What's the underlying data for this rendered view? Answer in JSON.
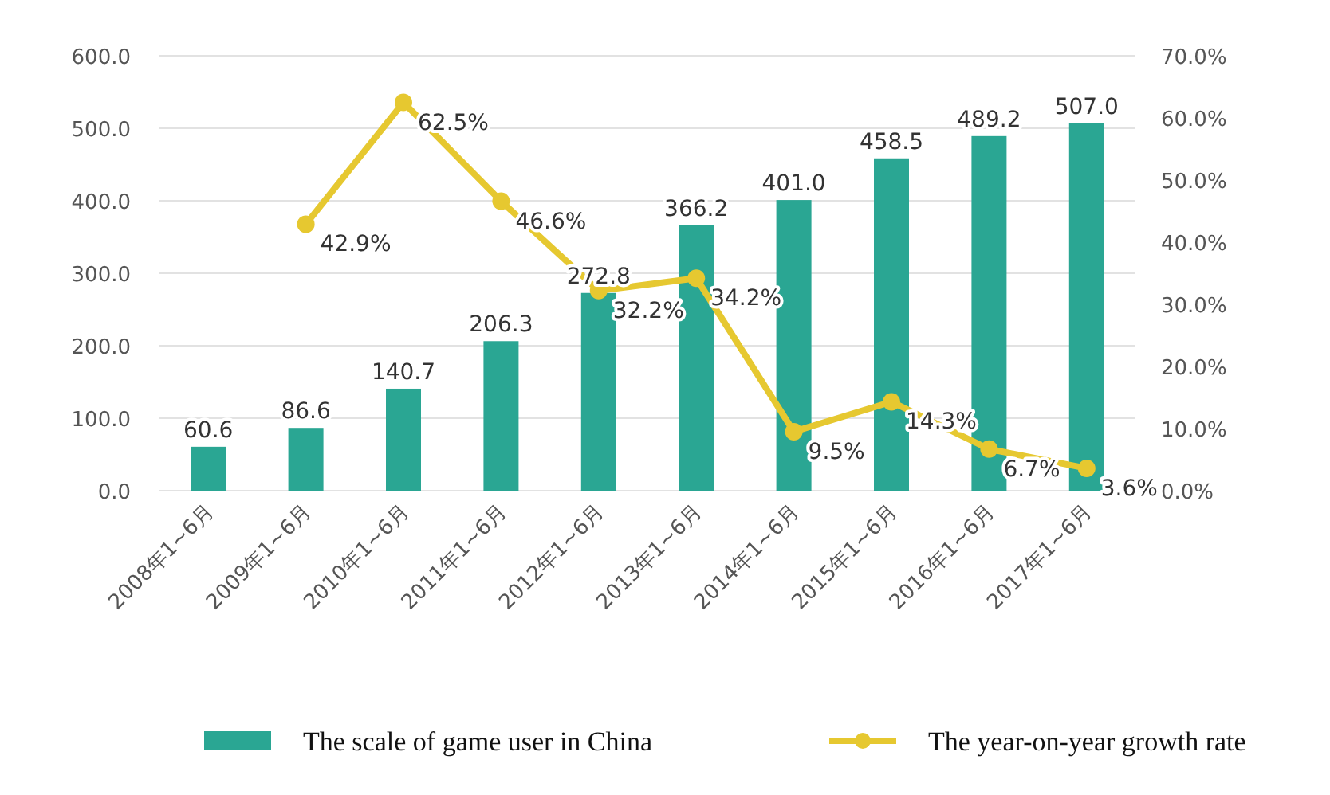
{
  "chart_data": {
    "type": "bar",
    "categories": [
      "2008年1~6月",
      "2009年1~6月",
      "2010年1~6月",
      "2011年1~6月",
      "2012年1~6月",
      "2013年1~6月",
      "2014年1~6月",
      "2015年1~6月",
      "2016年1~6月",
      "2017年1~6月"
    ],
    "series": [
      {
        "name": "The scale of game user in China",
        "color": "#2aa693",
        "values": [
          60.6,
          86.6,
          140.7,
          206.3,
          272.8,
          366.2,
          401.0,
          458.5,
          489.2,
          507.0
        ],
        "value_labels": [
          "60.6",
          "86.6",
          "140.7",
          "206.3",
          "272.8",
          "366.2",
          "401.0",
          "458.5",
          "489.2",
          "507.0"
        ]
      },
      {
        "name": "The year-on-year growth rate",
        "type": "line",
        "axis": "y2",
        "color": "#e6c830",
        "marker": "circle",
        "values": [
          null,
          42.9,
          62.5,
          46.6,
          32.2,
          34.2,
          9.5,
          14.3,
          6.7,
          3.6
        ],
        "value_labels": [
          null,
          "42.9%",
          "62.5%",
          "46.6%",
          "32.2%",
          "34.2%",
          "9.5%",
          "14.3%",
          "6.7%",
          "3.6%"
        ]
      }
    ],
    "ylim": [
      0,
      600
    ],
    "yticks": [
      {
        "value": 0,
        "label": "0.0"
      },
      {
        "value": 100,
        "label": "100.0"
      },
      {
        "value": 200,
        "label": "200.0"
      },
      {
        "value": 300,
        "label": "300.0"
      },
      {
        "value": 400,
        "label": "400.0"
      },
      {
        "value": 500,
        "label": "500.0"
      },
      {
        "value": 600,
        "label": "600.0"
      }
    ],
    "y2lim": [
      0,
      70
    ],
    "y2ticks": [
      {
        "value": 0,
        "label": "0.0%"
      },
      {
        "value": 10,
        "label": "10.0%"
      },
      {
        "value": 20,
        "label": "20.0%"
      },
      {
        "value": 30,
        "label": "30.0%"
      },
      {
        "value": 40,
        "label": "40.0%"
      },
      {
        "value": 50,
        "label": "50.0%"
      },
      {
        "value": 60,
        "label": "60.0%"
      },
      {
        "value": 70,
        "label": "70.0%"
      }
    ],
    "grid": "y",
    "legend": "bottom"
  }
}
